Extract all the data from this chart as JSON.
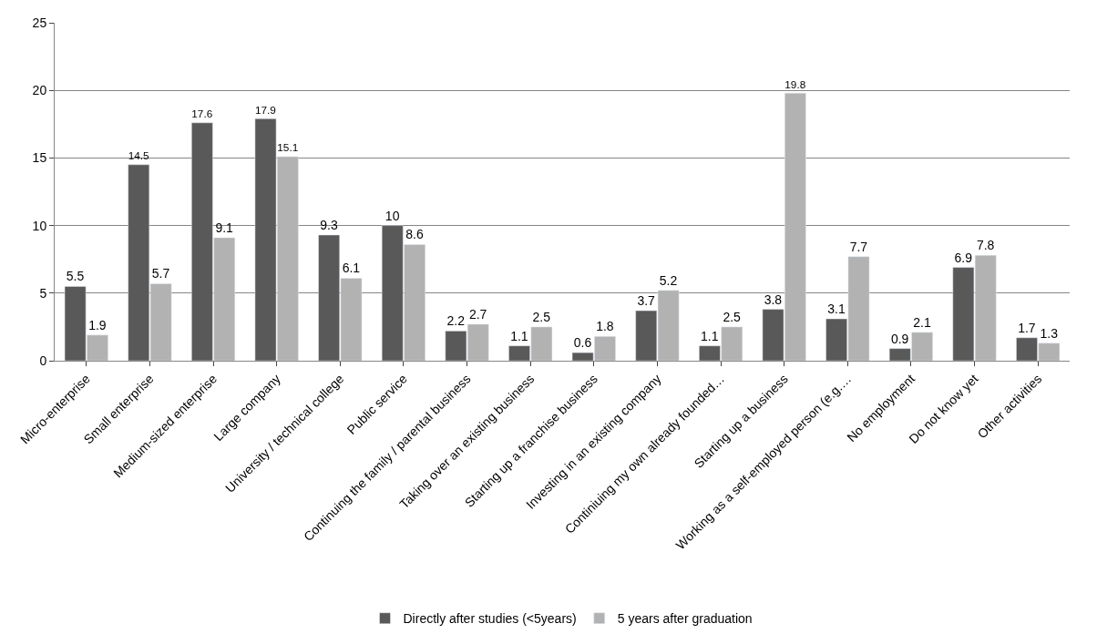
{
  "chart_data": {
    "type": "bar",
    "categories": [
      "Micro-enterprise",
      "Small enterprise",
      "Medium-sized enterprise",
      "Large company",
      "University / technical college",
      "Public service",
      "Continuing the family / parental business",
      "Taking over an existing business",
      "Starting up a franchise business",
      "Investing in an existing company",
      "Continiuing my own already founded…",
      "Starting up a business",
      "Working as a self-employed person (e.g.…",
      "No employment",
      "Do not know yet",
      "Other activities"
    ],
    "series": [
      {
        "name": "Directly after studies (<5years)",
        "color": "#595959",
        "values": [
          5.5,
          14.5,
          17.6,
          17.9,
          9.3,
          10,
          2.2,
          1.1,
          0.6,
          3.7,
          1.1,
          3.8,
          3.1,
          0.9,
          6.9,
          1.7
        ]
      },
      {
        "name": "5 years after graduation",
        "color": "#b2b2b2",
        "values": [
          1.9,
          5.7,
          9.1,
          15.1,
          6.1,
          8.6,
          2.7,
          2.5,
          1.8,
          5.2,
          2.5,
          19.8,
          7.7,
          2.1,
          7.8,
          1.3
        ]
      }
    ],
    "ylim": [
      0,
      25
    ],
    "yticks": [
      0,
      5,
      10,
      15,
      20,
      25
    ],
    "grid": "y",
    "legend": "bottom",
    "data_labels": true
  }
}
